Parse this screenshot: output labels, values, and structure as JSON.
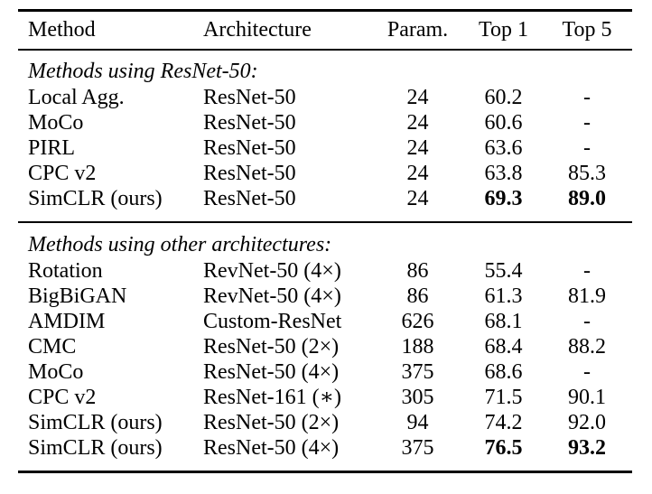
{
  "colors": {
    "background": "#ffffff",
    "text": "#000000",
    "rule": "#000000"
  },
  "table": {
    "columns": [
      "Method",
      "Architecture",
      "Param.",
      "Top 1",
      "Top 5"
    ],
    "sections": [
      {
        "title": "Methods using ResNet-50:",
        "rows": [
          {
            "cells": [
              "Local Agg.",
              "ResNet-50",
              "24",
              "60.2",
              "-"
            ]
          },
          {
            "cells": [
              "MoCo",
              "ResNet-50",
              "24",
              "60.6",
              "-"
            ]
          },
          {
            "cells": [
              "PIRL",
              "ResNet-50",
              "24",
              "63.6",
              "-"
            ]
          },
          {
            "cells": [
              "CPC v2",
              "ResNet-50",
              "24",
              "63.8",
              "85.3"
            ]
          },
          {
            "cells": [
              "SimCLR (ours)",
              "ResNet-50",
              "24",
              "69.3",
              "89.0"
            ]
          }
        ]
      },
      {
        "title": "Methods using other architectures:",
        "rows": [
          {
            "cells": [
              "Rotation",
              "RevNet-50 (4×)",
              "86",
              "55.4",
              "-"
            ]
          },
          {
            "cells": [
              "BigBiGAN",
              "RevNet-50 (4×)",
              "86",
              "61.3",
              "81.9"
            ]
          },
          {
            "cells": [
              "AMDIM",
              "Custom-ResNet",
              "626",
              "68.1",
              "-"
            ]
          },
          {
            "cells": [
              "CMC",
              "ResNet-50 (2×)",
              "188",
              "68.4",
              "88.2"
            ]
          },
          {
            "cells": [
              "MoCo",
              "ResNet-50 (4×)",
              "375",
              "68.6",
              "-"
            ]
          },
          {
            "cells": [
              "CPC v2",
              "ResNet-161 (∗)",
              "305",
              "71.5",
              "90.1"
            ]
          },
          {
            "cells": [
              "SimCLR (ours)",
              "ResNet-50 (2×)",
              "94",
              "74.2",
              "92.0"
            ]
          },
          {
            "cells": [
              "SimCLR (ours)",
              "ResNet-50 (4×)",
              "375",
              "76.5",
              "93.2"
            ]
          }
        ]
      }
    ]
  }
}
